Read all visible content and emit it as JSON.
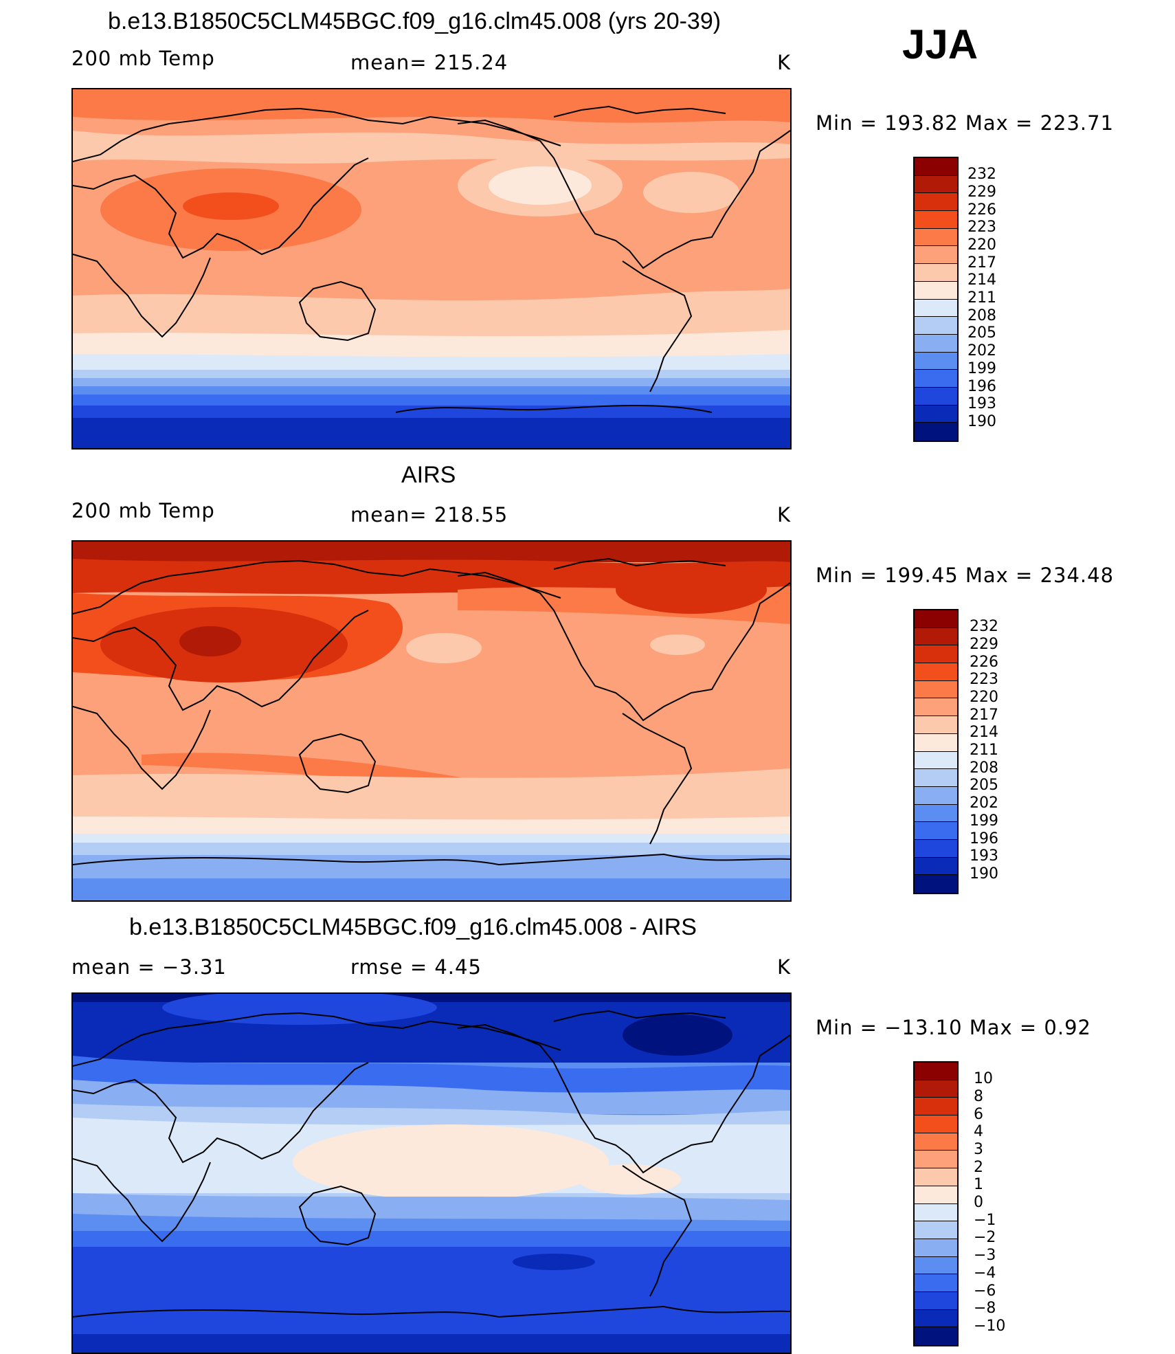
{
  "season": "JJA",
  "panels": [
    {
      "id": "model",
      "title": "b.e13.B1850C5CLM45BGC.f09_g16.clm45.008 (yrs 20-39)",
      "left": "200 mb Temp",
      "center": "mean= 215.24",
      "right": "K",
      "minmax": "Min = 193.82 Max = 223.71",
      "colorbar_labels": [
        "232",
        "229",
        "226",
        "223",
        "220",
        "217",
        "214",
        "211",
        "208",
        "205",
        "202",
        "199",
        "196",
        "193",
        "190"
      ]
    },
    {
      "id": "obs",
      "title": "AIRS",
      "left": "200 mb Temp",
      "center": "mean= 218.55",
      "right": "K",
      "minmax": "Min = 199.45 Max = 234.48",
      "colorbar_labels": [
        "232",
        "229",
        "226",
        "223",
        "220",
        "217",
        "214",
        "211",
        "208",
        "205",
        "202",
        "199",
        "196",
        "193",
        "190"
      ]
    },
    {
      "id": "diff",
      "title": "b.e13.B1850C5CLM45BGC.f09_g16.clm45.008 - AIRS",
      "left": "mean =   −3.31",
      "center": "rmse =    4.45",
      "right": "K",
      "minmax": "Min = −13.10 Max =    0.92",
      "colorbar_labels": [
        "10",
        "8",
        "6",
        "4",
        "3",
        "2",
        "1",
        "0",
        "−1",
        "−2",
        "−3",
        "−4",
        "−6",
        "−8",
        "−10"
      ]
    }
  ],
  "colorbar_colors": [
    "#8b0000",
    "#b01a06",
    "#d8300c",
    "#f24f1c",
    "#fb7a48",
    "#fda17a",
    "#fdc9ac",
    "#fde9dc",
    "#dbe9f9",
    "#b3cdf4",
    "#8aaef2",
    "#5c8ef2",
    "#3a6cf0",
    "#1f47de",
    "#0a2ab8",
    "#00127e"
  ]
}
